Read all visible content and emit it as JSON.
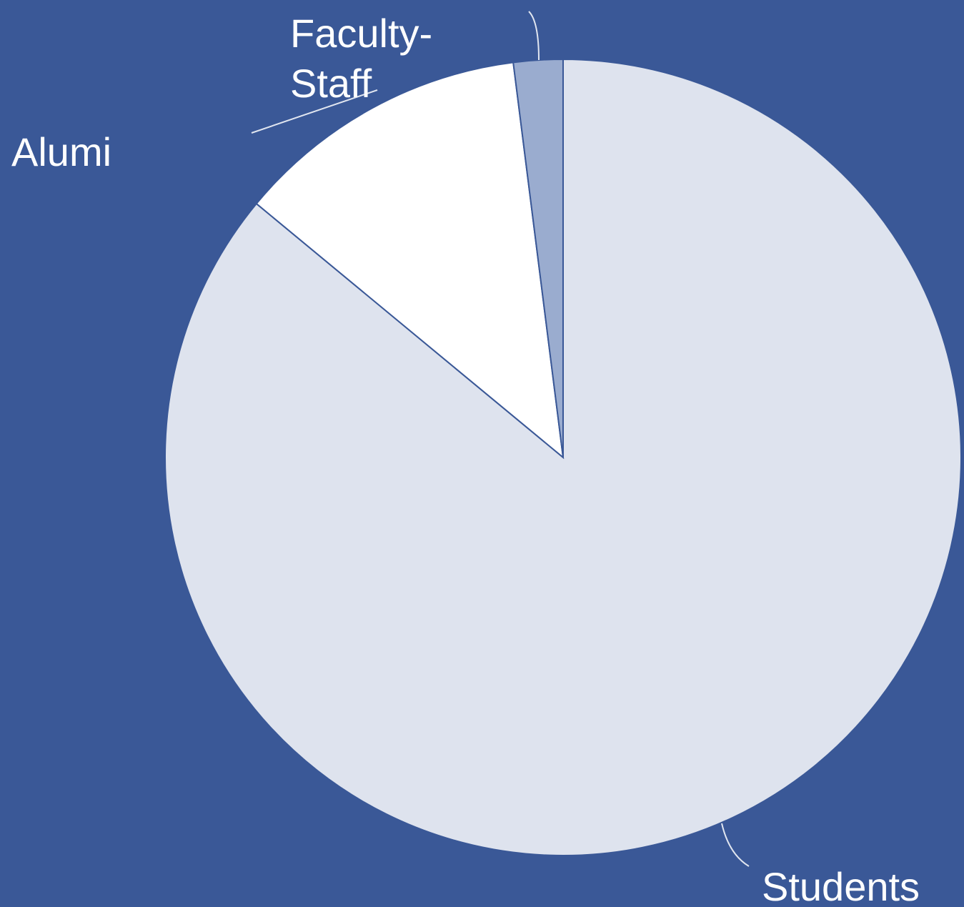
{
  "chart_data": {
    "type": "pie",
    "slices": [
      {
        "label": "Students",
        "value": 86.0,
        "color": "#dee3ee"
      },
      {
        "label": "Alumi",
        "value": 12.0,
        "color": "#ffffff"
      },
      {
        "label": "Faculty-Staff",
        "value": 2.0,
        "color": "#9aaccf"
      }
    ],
    "label_lines": {
      "Students": [
        "Students"
      ],
      "Alumi": [
        "Alumi"
      ],
      "Faculty-Staff": [
        "Faculty-",
        "Staff"
      ]
    },
    "start_angle": "12 o'clock",
    "direction": "clockwise",
    "colors": {
      "background": "#3a5897",
      "slice_border": "#3a5897"
    }
  }
}
